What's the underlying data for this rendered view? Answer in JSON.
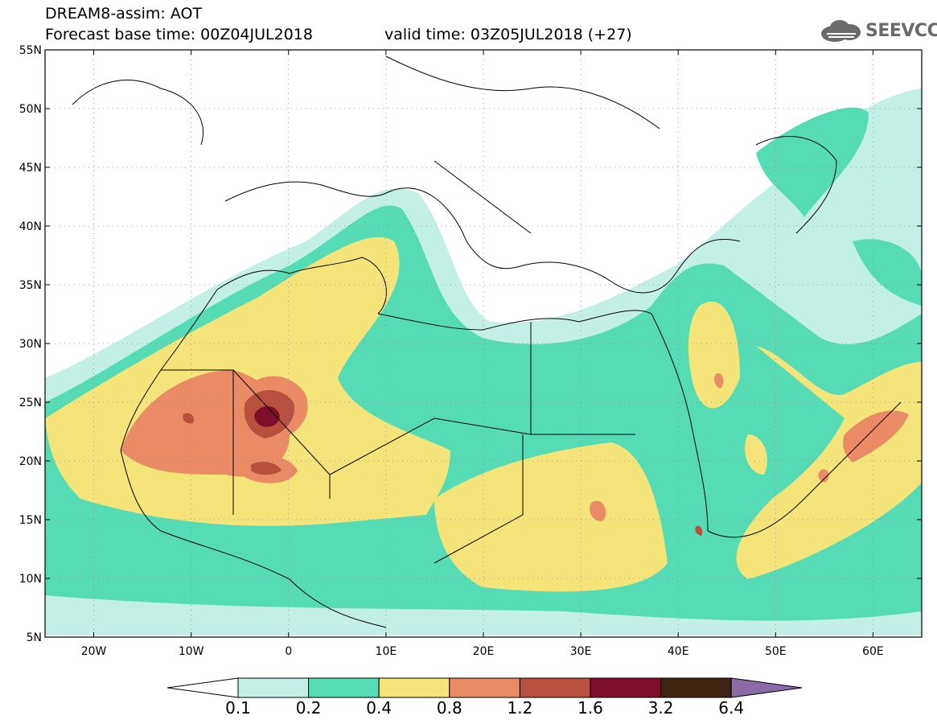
{
  "header": {
    "title": "DREAM8-assim: AOT",
    "base_time": "Forecast base time: 00Z04JUL2018",
    "valid_time": "valid time: 03Z05JUL2018 (+27)",
    "logo_text": "SEEVCCC",
    "logo_icon": "cloud-icon"
  },
  "map": {
    "lon_range": [
      -25,
      65
    ],
    "lat_range": [
      5,
      55
    ],
    "grid": "dotted",
    "lat_ticks": [
      {
        "value": 55,
        "label": "55N"
      },
      {
        "value": 50,
        "label": "50N"
      },
      {
        "value": 45,
        "label": "45N"
      },
      {
        "value": 40,
        "label": "40N"
      },
      {
        "value": 35,
        "label": "35N"
      },
      {
        "value": 30,
        "label": "30N"
      },
      {
        "value": 25,
        "label": "25N"
      },
      {
        "value": 20,
        "label": "20N"
      },
      {
        "value": 15,
        "label": "15N"
      },
      {
        "value": 10,
        "label": "10N"
      },
      {
        "value": 5,
        "label": "5N"
      }
    ],
    "lon_ticks": [
      {
        "value": -20,
        "label": "20W"
      },
      {
        "value": -10,
        "label": "10W"
      },
      {
        "value": 0,
        "label": "0"
      },
      {
        "value": 10,
        "label": "10E"
      },
      {
        "value": 20,
        "label": "20E"
      },
      {
        "value": 30,
        "label": "30E"
      },
      {
        "value": 40,
        "label": "40E"
      },
      {
        "value": 50,
        "label": "50E"
      },
      {
        "value": 60,
        "label": "60E"
      }
    ]
  },
  "colorbar": {
    "levels": [
      "0.1",
      "0.2",
      "0.4",
      "0.8",
      "1.2",
      "1.6",
      "3.2",
      "6.4"
    ],
    "colors": [
      "#ffffff",
      "#c2efe6",
      "#56dcb4",
      "#f5e47a",
      "#e98c66",
      "#b8503e",
      "#7e0f2a",
      "#3f2412",
      "#8b6aa8"
    ]
  }
}
